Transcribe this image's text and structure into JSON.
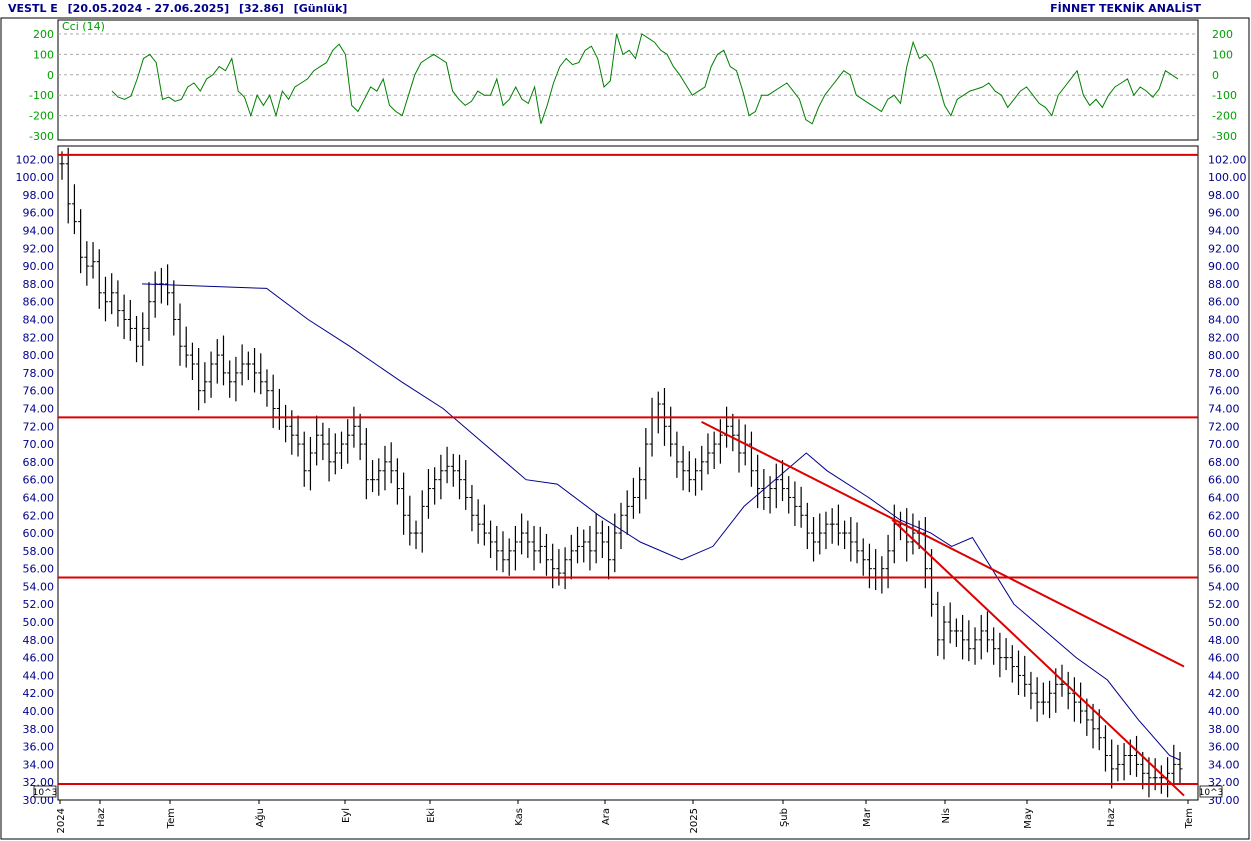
{
  "header": {
    "symbol": "VESTL E",
    "range": "[20.05.2024 - 27.06.2025]",
    "last": "[32.86]",
    "period": "[Günlük]",
    "brand": "FİNNET TEKNİK ANALİST"
  },
  "colors": {
    "price_bars": "#000000",
    "moving_average": "#00008b",
    "cci_line": "#008000",
    "trend_lines": "#dd0000",
    "axis_text": "#00008b"
  },
  "chart_data": [
    {
      "type": "line",
      "name": "cci-panel",
      "legend": "Cci (14)",
      "y_ticks": [
        200,
        100,
        0,
        -100,
        -200,
        -300
      ],
      "ylim": [
        -300,
        200
      ],
      "grid_lines": [
        200,
        100,
        0,
        -100,
        -200
      ],
      "series": [
        {
          "values": [
            [
              -80,
              -110
            ],
            [
              -120,
              -105
            ],
            [
              -20,
              80
            ],
            [
              100,
              60
            ],
            [
              -120,
              -110
            ],
            [
              -130,
              -120
            ],
            [
              -60,
              -40
            ],
            [
              -80,
              -20
            ],
            [
              0,
              40
            ],
            [
              20,
              80
            ],
            [
              -80,
              -110
            ],
            [
              -200,
              -100
            ],
            [
              -150,
              -100
            ],
            [
              -200,
              -80
            ],
            [
              -120,
              -60
            ],
            [
              -40,
              -20
            ],
            [
              20,
              40
            ],
            [
              60,
              120
            ],
            [
              150,
              100
            ],
            [
              -150,
              -180
            ],
            [
              -120,
              -60
            ],
            [
              -80,
              -20
            ],
            [
              -150,
              -180
            ],
            [
              -200,
              -100
            ],
            [
              0,
              60
            ],
            [
              80,
              100
            ],
            [
              80,
              60
            ],
            [
              -80,
              -120
            ],
            [
              -150,
              -130
            ],
            [
              -80,
              -100
            ],
            [
              -100,
              -20
            ],
            [
              -150,
              -120
            ],
            [
              -60,
              -120
            ],
            [
              -140,
              -60
            ],
            [
              -240,
              -150
            ],
            [
              -40,
              40
            ],
            [
              80,
              50
            ],
            [
              60,
              120
            ],
            [
              140,
              80
            ],
            [
              -60,
              -30
            ],
            [
              200,
              100
            ],
            [
              120,
              80
            ],
            [
              200,
              180
            ],
            [
              160,
              120
            ],
            [
              100,
              40
            ],
            [
              0,
              -50
            ],
            [
              -100,
              -80
            ],
            [
              -60,
              40
            ],
            [
              100,
              120
            ],
            [
              40,
              20
            ],
            [
              -80,
              -200
            ],
            [
              -180,
              -100
            ],
            [
              -100,
              -80
            ],
            [
              -60,
              -40
            ],
            [
              -80,
              -120
            ],
            [
              -220,
              -240
            ],
            [
              -160,
              -100
            ],
            [
              -60,
              -20
            ],
            [
              20,
              0
            ],
            [
              -100,
              -120
            ],
            [
              -140,
              -160
            ],
            [
              -180,
              -120
            ],
            [
              -100,
              -140
            ],
            [
              40,
              160
            ],
            [
              80,
              100
            ],
            [
              60,
              -40
            ],
            [
              -150,
              -200
            ],
            [
              -120,
              -100
            ],
            [
              -80,
              -70
            ],
            [
              -60,
              -40
            ],
            [
              -80,
              -100
            ],
            [
              -160,
              -120
            ],
            [
              -80,
              -60
            ],
            [
              -100,
              -140
            ],
            [
              -160,
              -200
            ],
            [
              -100,
              -60
            ],
            [
              -20,
              20
            ],
            [
              -100,
              -150
            ],
            [
              -120,
              -160
            ],
            [
              -100,
              -60
            ],
            [
              -40,
              -20
            ],
            [
              -100,
              -60
            ],
            [
              -80,
              -110
            ],
            [
              -70,
              20
            ],
            [
              0,
              -20
            ]
          ]
        }
      ]
    },
    {
      "type": "bar",
      "name": "price-panel",
      "y_ticks": [
        102,
        100,
        98,
        96,
        94,
        92,
        90,
        88,
        86,
        84,
        82,
        80,
        78,
        76,
        74,
        72,
        70,
        68,
        66,
        64,
        62,
        60,
        58,
        56,
        54,
        52,
        50,
        48,
        46,
        44,
        42,
        40,
        38,
        36,
        34,
        32,
        30
      ],
      "ylim": [
        30,
        103.5
      ],
      "unit_label": "10^3",
      "x_labels": [
        "2024",
        "Haz",
        "Tem",
        "Ağu",
        "Eyl",
        "Eki",
        "Kas",
        "Ara",
        "2025",
        "Şub",
        "Mar",
        "Nis",
        "May",
        "Haz",
        "Tem"
      ],
      "ohlc_closes": [
        101.5,
        97,
        95,
        91,
        90,
        90.5,
        87,
        86,
        87,
        85,
        84,
        83,
        81,
        83,
        86,
        88,
        88,
        87,
        84,
        81,
        80,
        79,
        76,
        77,
        79,
        80,
        78,
        77,
        78,
        79,
        79,
        78,
        77,
        76,
        74,
        73,
        72,
        71,
        70,
        67,
        69,
        71,
        70,
        68,
        69,
        70,
        71,
        72,
        70,
        66,
        66,
        67,
        68,
        67,
        65,
        62,
        60,
        60,
        63,
        65,
        66,
        67,
        67.5,
        67,
        66,
        64,
        62,
        61,
        60,
        59,
        58,
        57,
        58,
        59,
        60,
        59,
        58,
        58.5,
        57,
        56,
        55.5,
        57,
        58,
        58.5,
        59,
        58,
        60,
        59,
        57,
        60,
        62,
        63,
        64,
        66,
        70,
        73,
        74.5,
        72,
        70,
        68,
        67,
        66,
        67,
        68,
        69,
        70,
        71,
        72,
        71,
        69,
        70,
        67,
        65,
        64,
        65,
        66,
        65,
        64,
        63,
        62,
        60,
        59,
        60,
        61,
        61,
        60,
        60,
        59,
        58,
        57,
        56,
        55,
        56,
        58,
        61,
        61,
        59,
        60,
        60,
        56,
        52,
        48,
        50,
        49,
        49,
        48,
        47,
        48,
        49,
        48,
        47,
        46,
        46,
        45,
        44,
        43,
        42,
        41,
        41,
        42,
        43,
        43,
        42,
        41,
        40,
        39,
        38,
        37,
        35,
        33.5,
        34,
        35,
        35,
        34,
        33,
        32.5,
        32.5,
        32.5,
        33,
        34,
        33.5
      ],
      "moving_average": [
        [
          0,
          88
        ],
        [
          0.12,
          87.5
        ],
        [
          0.16,
          84
        ],
        [
          0.2,
          81
        ],
        [
          0.25,
          77
        ],
        [
          0.29,
          74
        ],
        [
          0.33,
          70
        ],
        [
          0.37,
          66
        ],
        [
          0.4,
          65.5
        ],
        [
          0.44,
          62
        ],
        [
          0.48,
          59
        ],
        [
          0.52,
          57
        ],
        [
          0.55,
          58.5
        ],
        [
          0.58,
          63
        ],
        [
          0.62,
          67
        ],
        [
          0.64,
          69
        ],
        [
          0.66,
          67
        ],
        [
          0.7,
          64
        ],
        [
          0.73,
          61.5
        ],
        [
          0.76,
          60
        ],
        [
          0.78,
          58.5
        ],
        [
          0.8,
          59.5
        ],
        [
          0.84,
          52
        ],
        [
          0.86,
          50
        ],
        [
          0.9,
          46
        ],
        [
          0.93,
          43.5
        ],
        [
          0.96,
          39
        ],
        [
          0.99,
          35
        ],
        [
          1,
          34.5
        ]
      ],
      "horizontal_levels": [
        102.5,
        73,
        55,
        31.8
      ],
      "trend_lines": [
        [
          [
            0.57,
            72.5
          ],
          [
            1,
            45
          ]
        ],
        [
          [
            0.74,
            61.5
          ],
          [
            1,
            30.5
          ]
        ]
      ]
    }
  ]
}
